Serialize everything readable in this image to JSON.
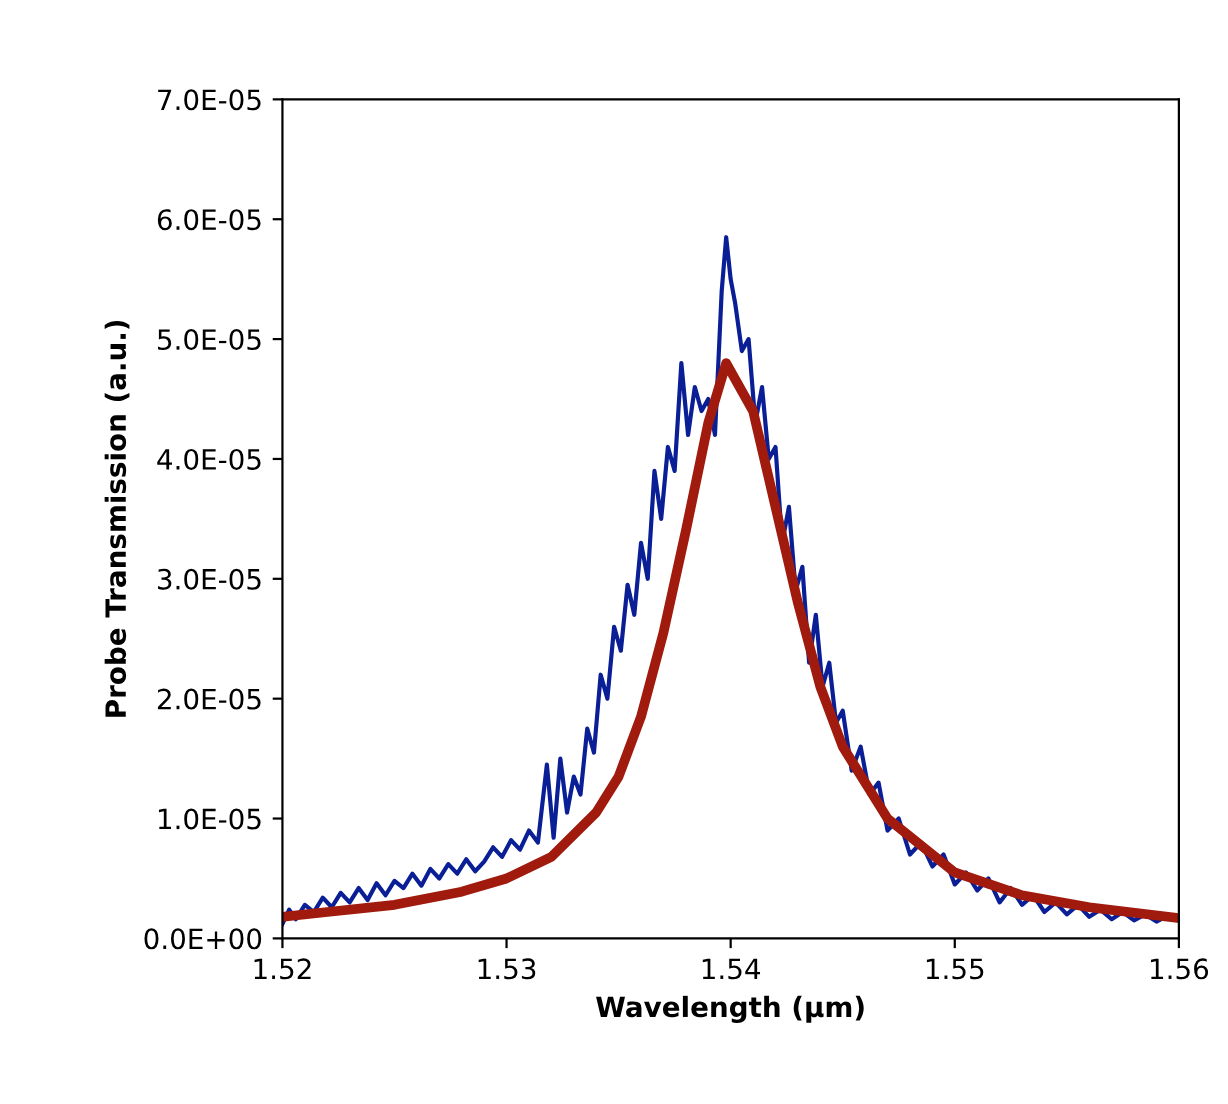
{
  "chart_data": {
    "type": "line",
    "xlabel": "Wavelength (μm)",
    "ylabel": "Probe Transmission (a.u.)",
    "xlim": [
      1.52,
      1.56
    ],
    "xticks": [
      {
        "value": 1.52,
        "label": "1.52"
      },
      {
        "value": 1.53,
        "label": "1.53"
      },
      {
        "value": 1.54,
        "label": "1.54"
      },
      {
        "value": 1.55,
        "label": "1.55"
      },
      {
        "value": 1.56,
        "label": "1.56"
      }
    ],
    "ylim": [
      0,
      7e-05
    ],
    "yticks": [
      {
        "value": 0,
        "label": "0.0E+00"
      },
      {
        "value": 1e-05,
        "label": "1.0E-05"
      },
      {
        "value": 2e-05,
        "label": "2.0E-05"
      },
      {
        "value": 3e-05,
        "label": "3.0E-05"
      },
      {
        "value": 4e-05,
        "label": "4.0E-05"
      },
      {
        "value": 5e-05,
        "label": "5.0E-05"
      },
      {
        "value": 6e-05,
        "label": "6.0E-05"
      },
      {
        "value": 7e-05,
        "label": "7.0E-05"
      }
    ],
    "grid": false,
    "legend": false,
    "line_style": "solid",
    "marker": "none",
    "series": [
      {
        "color": "#0a1e96",
        "x": [
          1.52,
          1.5203,
          1.5206,
          1.521,
          1.5214,
          1.5218,
          1.5222,
          1.5226,
          1.523,
          1.5234,
          1.5238,
          1.5242,
          1.5246,
          1.525,
          1.5254,
          1.5258,
          1.5262,
          1.5266,
          1.527,
          1.5274,
          1.5278,
          1.5282,
          1.5286,
          1.529,
          1.5294,
          1.5298,
          1.5302,
          1.5306,
          1.531,
          1.5314,
          1.5318,
          1.5321,
          1.5324,
          1.5327,
          1.533,
          1.5333,
          1.5336,
          1.5339,
          1.5342,
          1.5345,
          1.5348,
          1.5351,
          1.5354,
          1.5357,
          1.536,
          1.5363,
          1.5366,
          1.5369,
          1.5372,
          1.5375,
          1.5378,
          1.5381,
          1.5384,
          1.5387,
          1.539,
          1.5393,
          1.5396,
          1.5398,
          1.54,
          1.5402,
          1.5405,
          1.5408,
          1.5411,
          1.5414,
          1.5417,
          1.542,
          1.5423,
          1.5426,
          1.5429,
          1.5432,
          1.5435,
          1.5438,
          1.5441,
          1.5444,
          1.5447,
          1.545,
          1.5454,
          1.5458,
          1.5462,
          1.5466,
          1.547,
          1.5475,
          1.548,
          1.5485,
          1.549,
          1.5495,
          1.55,
          1.5505,
          1.551,
          1.5515,
          1.552,
          1.5525,
          1.553,
          1.5535,
          1.554,
          1.5545,
          1.555,
          1.5555,
          1.556,
          1.5565,
          1.557,
          1.5575,
          1.558,
          1.5585,
          1.559,
          1.5595,
          1.56
        ],
        "values": [
          1.2e-06,
          2.4e-06,
          1.6e-06,
          2.8e-06,
          2.2e-06,
          3.4e-06,
          2.6e-06,
          3.8e-06,
          3e-06,
          4.2e-06,
          3.2e-06,
          4.6e-06,
          3.6e-06,
          4.8e-06,
          4.2e-06,
          5.4e-06,
          4.4e-06,
          5.8e-06,
          5e-06,
          6.2e-06,
          5.4e-06,
          6.6e-06,
          5.6e-06,
          6.4e-06,
          7.6e-06,
          6.8e-06,
          8.2e-06,
          7.4e-06,
          9e-06,
          8e-06,
          1.45e-05,
          8.4e-06,
          1.5e-05,
          1.05e-05,
          1.35e-05,
          1.2e-05,
          1.75e-05,
          1.55e-05,
          2.2e-05,
          2e-05,
          2.6e-05,
          2.4e-05,
          2.95e-05,
          2.7e-05,
          3.3e-05,
          3e-05,
          3.9e-05,
          3.5e-05,
          4.1e-05,
          3.9e-05,
          4.8e-05,
          4.2e-05,
          4.6e-05,
          4.4e-05,
          4.5e-05,
          4.2e-05,
          5.4e-05,
          5.85e-05,
          5.5e-05,
          5.3e-05,
          4.9e-05,
          5e-05,
          4.3e-05,
          4.6e-05,
          4e-05,
          4.1e-05,
          3.3e-05,
          3.6e-05,
          2.9e-05,
          3.1e-05,
          2.3e-05,
          2.7e-05,
          2.1e-05,
          2.3e-05,
          1.8e-05,
          1.9e-05,
          1.4e-05,
          1.6e-05,
          1.2e-05,
          1.3e-05,
          9e-06,
          1e-05,
          7e-06,
          8e-06,
          6e-06,
          7e-06,
          4.5e-06,
          5.5e-06,
          4e-06,
          5e-06,
          3e-06,
          4.2e-06,
          2.8e-06,
          3.6e-06,
          2.2e-06,
          3e-06,
          2e-06,
          2.8e-06,
          1.8e-06,
          2.4e-06,
          1.6e-06,
          2.2e-06,
          1.5e-06,
          2e-06,
          1.4e-06,
          1.9e-06,
          1.5e-06
        ]
      },
      {
        "color": "#a01a0e",
        "x": [
          1.52,
          1.522,
          1.525,
          1.528,
          1.53,
          1.532,
          1.534,
          1.535,
          1.536,
          1.537,
          1.538,
          1.539,
          1.5398,
          1.541,
          1.542,
          1.543,
          1.544,
          1.545,
          1.547,
          1.55,
          1.553,
          1.556,
          1.56
        ],
        "values": [
          1.8e-06,
          2.2e-06,
          2.8e-06,
          3.9e-06,
          5e-06,
          6.8e-06,
          1.05e-05,
          1.35e-05,
          1.85e-05,
          2.55e-05,
          3.4e-05,
          4.3e-05,
          4.8e-05,
          4.4e-05,
          3.6e-05,
          2.8e-05,
          2.1e-05,
          1.6e-05,
          1e-05,
          5.5e-06,
          3.6e-06,
          2.6e-06,
          1.7e-06
        ]
      }
    ]
  }
}
